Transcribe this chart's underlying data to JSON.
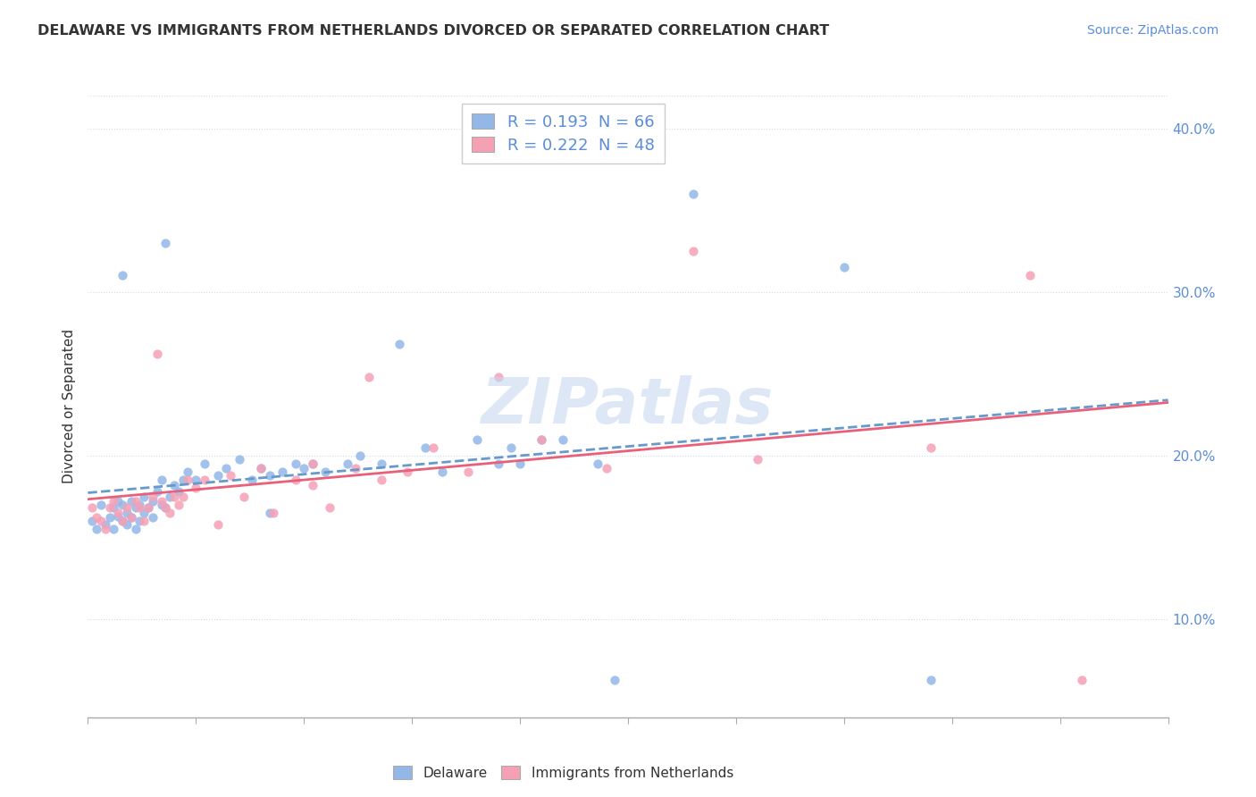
{
  "title": "DELAWARE VS IMMIGRANTS FROM NETHERLANDS DIVORCED OR SEPARATED CORRELATION CHART",
  "source": "Source: ZipAtlas.com",
  "ylabel": "Divorced or Separated",
  "xmin": 0.0,
  "xmax": 0.25,
  "ymin": 0.04,
  "ymax": 0.42,
  "r_delaware": 0.193,
  "n_delaware": 66,
  "r_netherlands": 0.222,
  "n_netherlands": 48,
  "color_delaware": "#93b8e8",
  "color_netherlands": "#f5a0b5",
  "line_color_delaware": "#6699cc",
  "line_color_netherlands": "#e8607a",
  "watermark": "ZIPatlas",
  "legend_labels": [
    "Delaware",
    "Immigrants from Netherlands"
  ],
  "delaware_x": [
    0.001,
    0.002,
    0.003,
    0.004,
    0.005,
    0.006,
    0.006,
    0.007,
    0.007,
    0.008,
    0.008,
    0.009,
    0.009,
    0.01,
    0.01,
    0.011,
    0.011,
    0.012,
    0.012,
    0.013,
    0.013,
    0.014,
    0.015,
    0.015,
    0.016,
    0.017,
    0.017,
    0.018,
    0.019,
    0.02,
    0.021,
    0.022,
    0.023,
    0.025,
    0.027,
    0.03,
    0.032,
    0.035,
    0.038,
    0.04,
    0.042,
    0.045,
    0.048,
    0.05,
    0.055,
    0.06,
    0.063,
    0.068,
    0.072,
    0.078,
    0.082,
    0.09,
    0.095,
    0.1,
    0.11,
    0.118,
    0.052,
    0.042,
    0.098,
    0.105,
    0.008,
    0.018,
    0.14,
    0.175,
    0.195,
    0.122
  ],
  "delaware_y": [
    0.16,
    0.155,
    0.17,
    0.158,
    0.162,
    0.168,
    0.155,
    0.172,
    0.163,
    0.16,
    0.17,
    0.158,
    0.165,
    0.162,
    0.172,
    0.168,
    0.155,
    0.17,
    0.16,
    0.165,
    0.175,
    0.168,
    0.172,
    0.162,
    0.178,
    0.17,
    0.185,
    0.168,
    0.175,
    0.182,
    0.178,
    0.185,
    0.19,
    0.185,
    0.195,
    0.188,
    0.192,
    0.198,
    0.185,
    0.192,
    0.188,
    0.19,
    0.195,
    0.192,
    0.19,
    0.195,
    0.2,
    0.195,
    0.268,
    0.205,
    0.19,
    0.21,
    0.195,
    0.195,
    0.21,
    0.195,
    0.195,
    0.165,
    0.205,
    0.21,
    0.31,
    0.33,
    0.36,
    0.315,
    0.063,
    0.063
  ],
  "netherlands_x": [
    0.001,
    0.002,
    0.003,
    0.004,
    0.005,
    0.006,
    0.007,
    0.008,
    0.009,
    0.01,
    0.011,
    0.012,
    0.013,
    0.014,
    0.015,
    0.016,
    0.017,
    0.018,
    0.019,
    0.02,
    0.021,
    0.022,
    0.023,
    0.025,
    0.027,
    0.03,
    0.033,
    0.036,
    0.04,
    0.043,
    0.048,
    0.052,
    0.056,
    0.062,
    0.068,
    0.074,
    0.08,
    0.088,
    0.095,
    0.105,
    0.12,
    0.14,
    0.052,
    0.065,
    0.155,
    0.195,
    0.218,
    0.23
  ],
  "netherlands_y": [
    0.168,
    0.162,
    0.16,
    0.155,
    0.168,
    0.172,
    0.165,
    0.16,
    0.168,
    0.162,
    0.172,
    0.168,
    0.16,
    0.168,
    0.175,
    0.262,
    0.172,
    0.168,
    0.165,
    0.175,
    0.17,
    0.175,
    0.185,
    0.18,
    0.185,
    0.158,
    0.188,
    0.175,
    0.192,
    0.165,
    0.185,
    0.182,
    0.168,
    0.192,
    0.185,
    0.19,
    0.205,
    0.19,
    0.248,
    0.21,
    0.192,
    0.325,
    0.195,
    0.248,
    0.198,
    0.205,
    0.31,
    0.063
  ]
}
